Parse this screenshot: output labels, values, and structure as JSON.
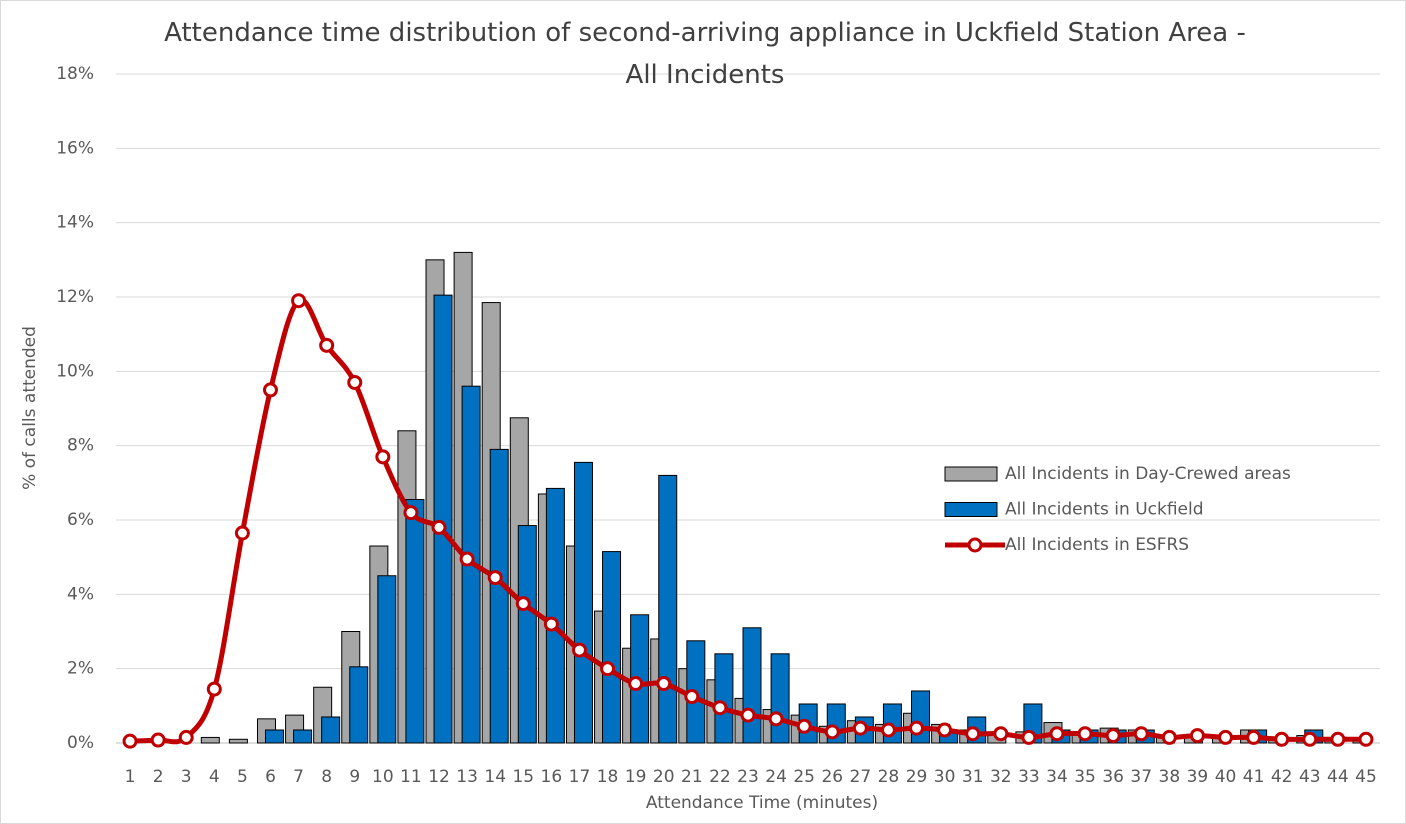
{
  "chart_data": {
    "type": "bar",
    "title": "Attendance time distribution of second-arriving appliance in Uckfield Station Area - All Incidents",
    "x_label": "Attendance Time (minutes)",
    "y_label": "% of calls attended",
    "categories": [
      1,
      2,
      3,
      4,
      5,
      6,
      7,
      8,
      9,
      10,
      11,
      12,
      13,
      14,
      15,
      16,
      17,
      18,
      19,
      20,
      21,
      22,
      23,
      24,
      25,
      26,
      27,
      28,
      29,
      30,
      31,
      32,
      33,
      34,
      35,
      36,
      37,
      38,
      39,
      40,
      41,
      42,
      43,
      44,
      45
    ],
    "series": [
      {
        "name": "All Incidents in Day-Crewed areas",
        "type": "bar",
        "color": "#a6a6a6",
        "values": [
          0,
          0,
          0,
          0.15,
          0.1,
          0.65,
          0.75,
          1.5,
          3.0,
          5.3,
          8.4,
          13.0,
          13.2,
          11.85,
          8.75,
          6.7,
          5.3,
          3.55,
          2.55,
          2.8,
          2.0,
          1.7,
          1.2,
          0.9,
          0.75,
          0.45,
          0.6,
          0.5,
          0.8,
          0.5,
          0.35,
          0.25,
          0.3,
          0.55,
          0.3,
          0.4,
          0.35,
          0.2,
          0.2,
          0.2,
          0.35,
          0.1,
          0.2,
          0.1,
          0.1
        ]
      },
      {
        "name": "All Incidents in Uckfield",
        "type": "bar",
        "color": "#0070c0",
        "values": [
          0,
          0,
          0,
          0,
          0,
          0.35,
          0.35,
          0.7,
          2.05,
          4.5,
          6.55,
          12.05,
          9.6,
          7.9,
          5.85,
          6.85,
          7.55,
          5.15,
          3.45,
          7.2,
          2.75,
          2.4,
          3.1,
          2.4,
          1.05,
          1.05,
          0.7,
          1.05,
          1.4,
          0.35,
          0.7,
          0,
          1.05,
          0.35,
          0.35,
          0.35,
          0.35,
          0,
          0,
          0,
          0.35,
          0,
          0.35,
          0,
          0
        ]
      },
      {
        "name": "All Incidents in ESFRS",
        "type": "line",
        "color": "#c00000",
        "values": [
          0.05,
          0.08,
          0.15,
          1.45,
          5.65,
          9.5,
          11.9,
          10.7,
          9.7,
          7.7,
          6.2,
          5.8,
          4.95,
          4.45,
          3.75,
          3.2,
          2.5,
          2.0,
          1.6,
          1.6,
          1.25,
          0.95,
          0.75,
          0.65,
          0.45,
          0.3,
          0.4,
          0.35,
          0.4,
          0.35,
          0.25,
          0.25,
          0.15,
          0.25,
          0.25,
          0.2,
          0.25,
          0.15,
          0.2,
          0.15,
          0.15,
          0.1,
          0.1,
          0.1,
          0.1
        ]
      }
    ],
    "ylim": [
      0,
      18
    ],
    "yticks": [
      {
        "value": 0,
        "label": "0%"
      },
      {
        "value": 2,
        "label": "2%"
      },
      {
        "value": 4,
        "label": "4%"
      },
      {
        "value": 6,
        "label": "6%"
      },
      {
        "value": 8,
        "label": "8%"
      },
      {
        "value": 10,
        "label": "10%"
      },
      {
        "value": 12,
        "label": "12%"
      },
      {
        "value": 14,
        "label": "14%"
      },
      {
        "value": 16,
        "label": "16%"
      },
      {
        "value": 18,
        "label": "18%"
      }
    ],
    "grid": true,
    "legend": "right"
  }
}
